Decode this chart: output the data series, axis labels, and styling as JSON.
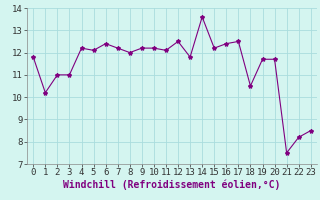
{
  "x": [
    0,
    1,
    2,
    3,
    4,
    5,
    6,
    7,
    8,
    9,
    10,
    11,
    12,
    13,
    14,
    15,
    16,
    17,
    18,
    19,
    20,
    21,
    22,
    23
  ],
  "y": [
    11.8,
    10.2,
    11.0,
    11.0,
    12.2,
    12.1,
    12.4,
    12.2,
    12.0,
    12.2,
    12.2,
    12.1,
    12.5,
    11.8,
    13.6,
    12.2,
    12.4,
    12.5,
    10.5,
    11.7,
    11.7,
    7.5,
    8.2,
    8.5
  ],
  "line_color": "#800080",
  "marker": "*",
  "bg_color": "#d4f5f0",
  "grid_color": "#aadddd",
  "xlabel": "Windchill (Refroidissement éolien,°C)",
  "xlabel_fontsize": 7,
  "tick_fontsize": 6.5,
  "xlim": [
    -0.5,
    23.5
  ],
  "ylim": [
    7,
    14
  ],
  "yticks": [
    7,
    8,
    9,
    10,
    11,
    12,
    13,
    14
  ],
  "xticks": [
    0,
    1,
    2,
    3,
    4,
    5,
    6,
    7,
    8,
    9,
    10,
    11,
    12,
    13,
    14,
    15,
    16,
    17,
    18,
    19,
    20,
    21,
    22,
    23
  ]
}
